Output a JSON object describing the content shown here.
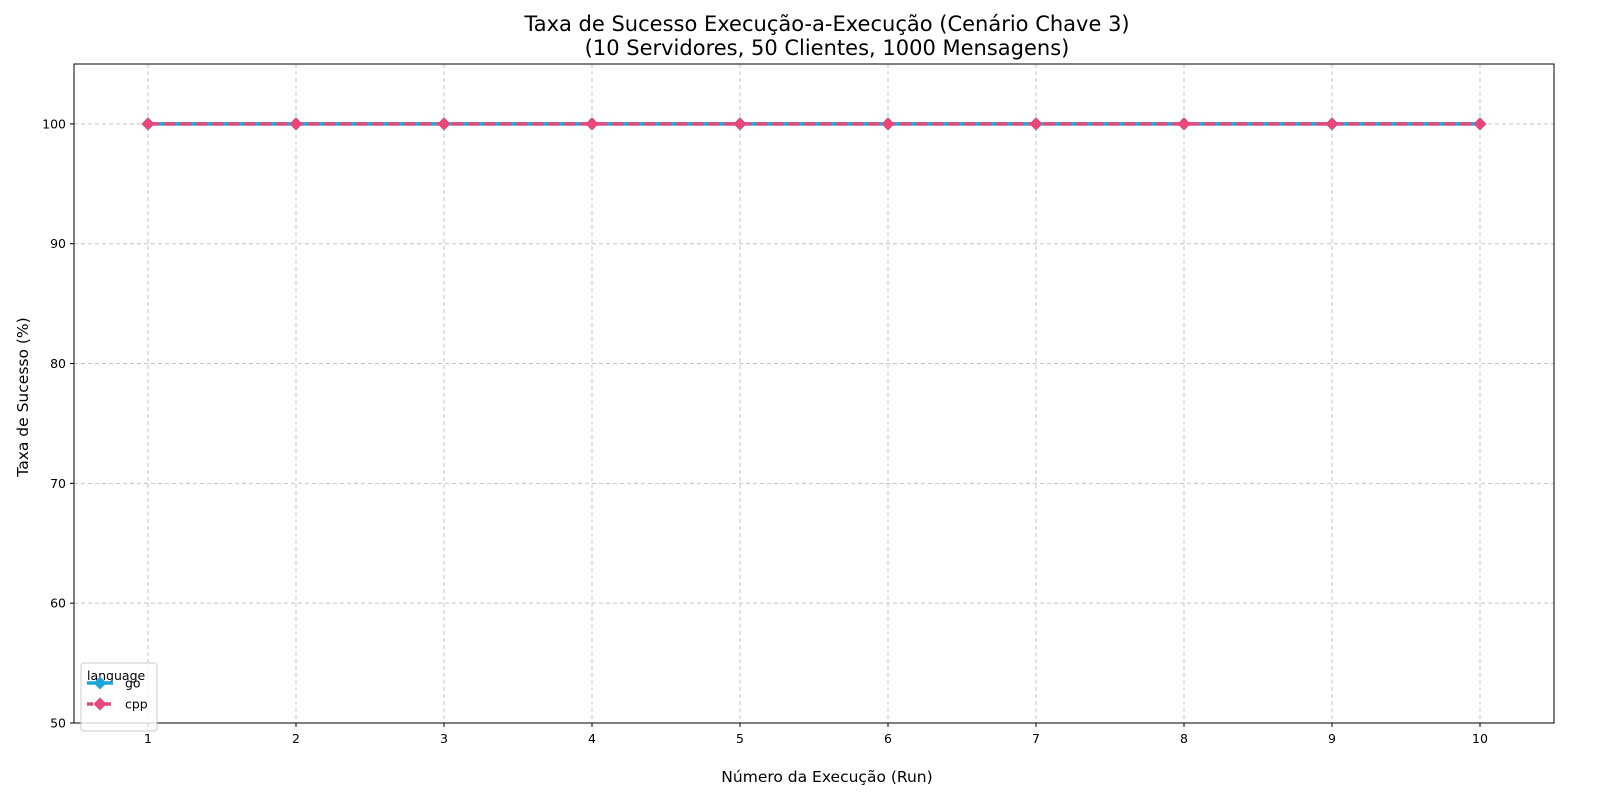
{
  "chart_data": {
    "type": "line",
    "title_line1": "Taxa de Sucesso Execução-a-Execução (Cenário Chave 3)",
    "title_line2": "(10 Servidores, 50 Clientes, 1000 Mensagens)",
    "xlabel": "Número da Execução (Run)",
    "ylabel": "Taxa de Sucesso (%)",
    "x": [
      1,
      2,
      3,
      4,
      5,
      6,
      7,
      8,
      9,
      10
    ],
    "x_tick_labels": [
      "1",
      "2",
      "3",
      "4",
      "5",
      "6",
      "7",
      "8",
      "9",
      "10"
    ],
    "y_ticks": [
      50,
      60,
      70,
      80,
      90,
      100
    ],
    "y_tick_labels": [
      "50",
      "60",
      "70",
      "80",
      "90",
      "100"
    ],
    "xlim": [
      0.5,
      10.5
    ],
    "ylim": [
      50,
      105
    ],
    "grid": true,
    "legend": {
      "title": "language",
      "placement": "lower-left"
    },
    "series": [
      {
        "name": "go",
        "color": "#1aa7d6",
        "line_style": "solid",
        "marker": "diamond",
        "values": [
          100,
          100,
          100,
          100,
          100,
          100,
          100,
          100,
          100,
          100
        ]
      },
      {
        "name": "cpp",
        "color": "#e8477c",
        "line_style": "dashed",
        "marker": "diamond",
        "values": [
          100,
          100,
          100,
          100,
          100,
          100,
          100,
          100,
          100,
          100
        ]
      }
    ]
  }
}
